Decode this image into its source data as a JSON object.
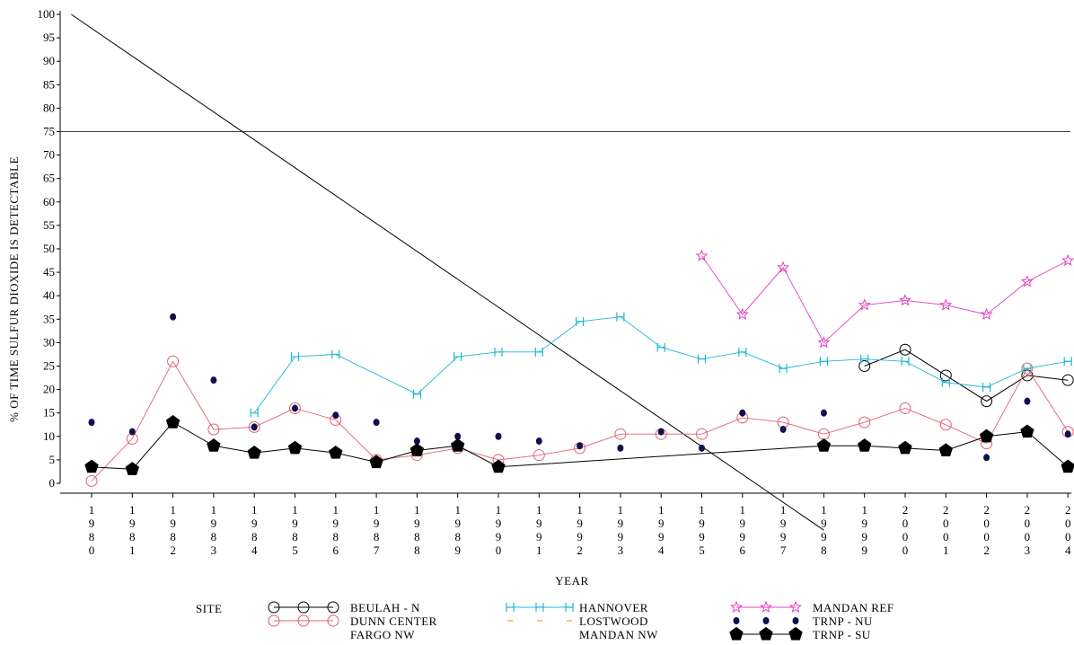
{
  "chart_data": {
    "type": "line",
    "xlabel": "YEAR",
    "ylabel": "% OF TIME SULFUR DIOXIDE IS DETECTABLE",
    "ylim": [
      0,
      100
    ],
    "yticks": [
      "0",
      "5",
      "10",
      "15",
      "20",
      "25",
      "30",
      "35",
      "40",
      "45",
      "50",
      "55",
      "60",
      "65",
      "70",
      "75",
      "80",
      "85",
      "90",
      "95",
      "100"
    ],
    "x": [
      1980,
      1981,
      1982,
      1983,
      1984,
      1985,
      1986,
      1987,
      1988,
      1989,
      1990,
      1991,
      1992,
      1993,
      1994,
      1995,
      1996,
      1997,
      1998,
      1999,
      2000,
      2001,
      2002,
      2003,
      2004
    ],
    "xtick_digits": [
      [
        "1",
        "9",
        "8",
        "0"
      ],
      [
        "1",
        "9",
        "8",
        "1"
      ],
      [
        "1",
        "9",
        "8",
        "2"
      ],
      [
        "1",
        "9",
        "8",
        "3"
      ],
      [
        "1",
        "9",
        "8",
        "4"
      ],
      [
        "1",
        "9",
        "8",
        "5"
      ],
      [
        "1",
        "9",
        "8",
        "6"
      ],
      [
        "1",
        "9",
        "8",
        "7"
      ],
      [
        "1",
        "9",
        "8",
        "8"
      ],
      [
        "1",
        "9",
        "8",
        "9"
      ],
      [
        "1",
        "9",
        "9",
        "0"
      ],
      [
        "1",
        "9",
        "9",
        "1"
      ],
      [
        "1",
        "9",
        "9",
        "2"
      ],
      [
        "1",
        "9",
        "9",
        "3"
      ],
      [
        "1",
        "9",
        "9",
        "4"
      ],
      [
        "1",
        "9",
        "9",
        "5"
      ],
      [
        "1",
        "9",
        "9",
        "6"
      ],
      [
        "1",
        "9",
        "9",
        "7"
      ],
      [
        "1",
        "9",
        "9",
        "8"
      ],
      [
        "1",
        "9",
        "9",
        "9"
      ],
      [
        "2",
        "0",
        "0",
        "0"
      ],
      [
        "2",
        "0",
        "0",
        "1"
      ],
      [
        "2",
        "0",
        "0",
        "2"
      ],
      [
        "2",
        "0",
        "0",
        "3"
      ],
      [
        "2",
        "0",
        "0",
        "4"
      ]
    ],
    "reference_lines": [
      {
        "type": "horizontal",
        "y": 75
      },
      {
        "type": "diagonal",
        "from": [
          1979.5,
          100
        ],
        "to": [
          1998,
          -10
        ]
      }
    ],
    "legend_title": "SITE",
    "legend_position": "bottom",
    "grid": false,
    "series": [
      {
        "name": "BEULAH - N",
        "marker": "circle",
        "color": "#000000",
        "line": true,
        "points": [
          [
            1999,
            25
          ],
          [
            2000,
            28.5
          ],
          [
            2001,
            23
          ],
          [
            2002,
            17.5
          ],
          [
            2003,
            23
          ],
          [
            2004,
            22
          ]
        ]
      },
      {
        "name": "DUNN CENTER",
        "marker": "circle",
        "color": "#e06070",
        "line": true,
        "points": [
          [
            1980,
            0.5
          ],
          [
            1981,
            9.5
          ],
          [
            1982,
            26
          ],
          [
            1983,
            11.5
          ],
          [
            1984,
            12
          ],
          [
            1985,
            16
          ],
          [
            1986,
            13.5
          ],
          [
            1987,
            5
          ],
          [
            1988,
            6
          ],
          [
            1989,
            7.5
          ],
          [
            1990,
            5
          ],
          [
            1991,
            6
          ],
          [
            1992,
            7.5
          ],
          [
            1993,
            10.5
          ],
          [
            1994,
            10.5
          ],
          [
            1995,
            10.5
          ],
          [
            1996,
            14
          ],
          [
            1997,
            13
          ],
          [
            1998,
            10.5
          ],
          [
            1999,
            13
          ],
          [
            2000,
            16
          ],
          [
            2001,
            12.5
          ],
          [
            2002,
            8.5
          ],
          [
            2003,
            24.5
          ],
          [
            2004,
            11
          ]
        ]
      },
      {
        "name": "FARGO NW",
        "marker": "none",
        "color": "#cccccc",
        "line": false,
        "points": []
      },
      {
        "name": "HANNOVER",
        "marker": "H",
        "color": "#20b8d8",
        "line": true,
        "points": [
          [
            1984,
            15
          ],
          [
            1985,
            27
          ],
          [
            1986,
            27.5
          ],
          [
            1988,
            19
          ],
          [
            1989,
            27
          ],
          [
            1990,
            28
          ],
          [
            1991,
            28
          ],
          [
            1992,
            34.5
          ],
          [
            1993,
            35.5
          ],
          [
            1994,
            29
          ],
          [
            1995,
            26.5
          ],
          [
            1996,
            28
          ],
          [
            1997,
            24.5
          ],
          [
            1998,
            26
          ],
          [
            1999,
            26.5
          ],
          [
            2000,
            26
          ],
          [
            2001,
            21.5
          ],
          [
            2002,
            20.5
          ],
          [
            2003,
            24.5
          ],
          [
            2004,
            26
          ]
        ]
      },
      {
        "name": "LOSTWOOD",
        "marker": "dash",
        "color": "#e8a040",
        "line": false,
        "points": []
      },
      {
        "name": "MANDAN NW",
        "marker": "none",
        "color": "#bbdddd",
        "line": false,
        "points": []
      },
      {
        "name": "MANDAN REF",
        "marker": "star",
        "color": "#e040c0",
        "line": true,
        "points": [
          [
            1995,
            48.5
          ],
          [
            1996,
            36
          ],
          [
            1997,
            46
          ],
          [
            1998,
            30
          ],
          [
            1999,
            38
          ],
          [
            2000,
            39
          ],
          [
            2001,
            38
          ],
          [
            2002,
            36
          ],
          [
            2003,
            43
          ],
          [
            2004,
            47.5
          ]
        ]
      },
      {
        "name": "TRNP - NU",
        "marker": "dot",
        "color": "#101050",
        "line": false,
        "points": [
          [
            1980,
            13
          ],
          [
            1981,
            11
          ],
          [
            1982,
            35.5
          ],
          [
            1983,
            22
          ],
          [
            1984,
            12
          ],
          [
            1985,
            16
          ],
          [
            1986,
            14.5
          ],
          [
            1987,
            13
          ],
          [
            1988,
            9
          ],
          [
            1989,
            10
          ],
          [
            1990,
            10
          ],
          [
            1991,
            9
          ],
          [
            1992,
            8
          ],
          [
            1993,
            7.5
          ],
          [
            1994,
            11
          ],
          [
            1995,
            7.5
          ],
          [
            1996,
            15
          ],
          [
            1997,
            11.5
          ],
          [
            1998,
            15
          ],
          [
            2002,
            5.5
          ],
          [
            2003,
            17.5
          ],
          [
            2004,
            10.5
          ]
        ]
      },
      {
        "name": "TRNP - SU",
        "marker": "pentagon",
        "color": "#000000",
        "line": true,
        "points": [
          [
            1980,
            3.5
          ],
          [
            1981,
            3
          ],
          [
            1982,
            13
          ],
          [
            1983,
            8
          ],
          [
            1984,
            6.5
          ],
          [
            1985,
            7.5
          ],
          [
            1986,
            6.5
          ],
          [
            1987,
            4.5
          ],
          [
            1988,
            7
          ],
          [
            1989,
            8
          ],
          [
            1990,
            3.5
          ],
          [
            1998,
            8
          ],
          [
            1999,
            8
          ],
          [
            2000,
            7.5
          ],
          [
            2001,
            7
          ],
          [
            2002,
            10
          ],
          [
            2003,
            11
          ],
          [
            2004,
            3.5
          ]
        ]
      }
    ]
  }
}
